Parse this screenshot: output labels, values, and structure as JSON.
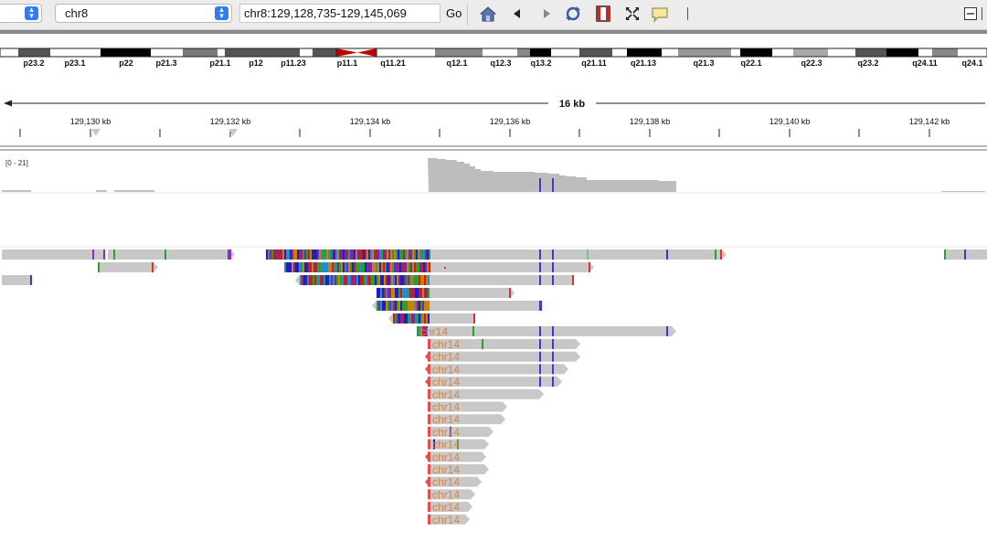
{
  "toolbar": {
    "genome_value": "",
    "chromosome": "chr8",
    "locus": "chr8:129,128,735-129,145,069",
    "go_label": "Go",
    "icons": [
      "home-icon",
      "back-icon",
      "forward-icon",
      "refresh-icon",
      "roi-icon",
      "fit-window-icon",
      "popup-text-icon"
    ]
  },
  "ideogram": {
    "bands": [
      "p23.2",
      "p23.1",
      "p22",
      "p21.3",
      "p21.1",
      "p12",
      "p11.23",
      "p11.1",
      "q11.21",
      "q12.1",
      "q12.3",
      "q13.2",
      "q21.11",
      "q21.13",
      "q21.3",
      "q22.1",
      "q22.3",
      "q23.2",
      "q24.11",
      "q24.1"
    ]
  },
  "ruler": {
    "span": "16 kb",
    "ticks": [
      "129,130 kb",
      "129,132 kb",
      "129,134 kb",
      "129,136 kb",
      "129,138 kb",
      "129,140 kb",
      "129,142 kb"
    ]
  },
  "coverage": {
    "range": "[0 - 21]"
  },
  "reads": {
    "mate_chrom": "chr14",
    "mate_rows": 15
  },
  "colors": {
    "read": "#c8c8c8",
    "mate_label": "#d2864a",
    "clip_red": "#e03030",
    "centromere": "#c00000"
  }
}
